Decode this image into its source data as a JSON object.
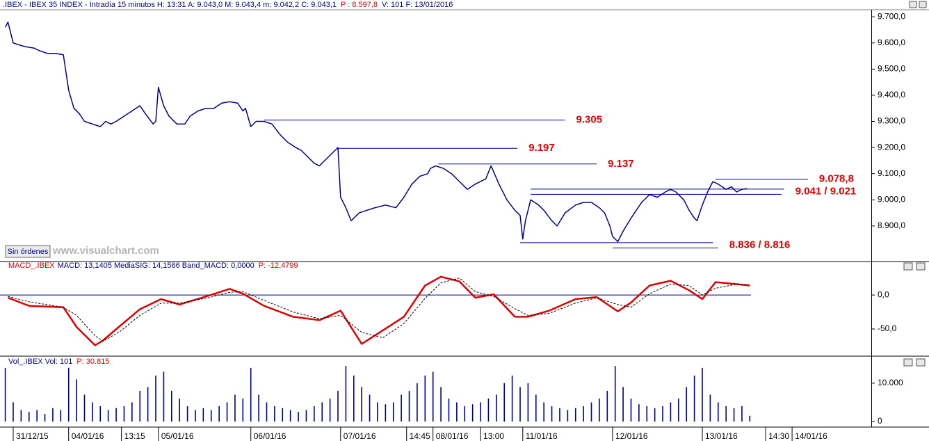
{
  "chart_data": [
    {
      "type": "line",
      "title": ".IBEX - IBEX 35 INDEX - Intradía 15 minutos  H: 13:31  A: 9.043,0  M: 9.043,4  m: 9.042,2  C: 9.043,1",
      "title_p": "P : 8.597,8",
      "title_tail": "V: 101  F: 13/01/2016",
      "button": "Sin órdenes",
      "watermark": "www.visualchart.com",
      "xlim": [
        0,
        330
      ],
      "ylim": [
        8764,
        9727
      ],
      "yticks": [
        {
          "value": 8900,
          "label": "8.900,0"
        },
        {
          "value": 9000,
          "label": "9.000,0"
        },
        {
          "value": 9100,
          "label": "9.100,0"
        },
        {
          "value": 9200,
          "label": "9.200,0"
        },
        {
          "value": 9300,
          "label": "9.300,0"
        },
        {
          "value": 9400,
          "label": "9.400,0"
        },
        {
          "value": 9500,
          "label": "9.500,0"
        },
        {
          "value": 9600,
          "label": "9.600,0"
        },
        {
          "value": 9700,
          "label": "9.700,0"
        }
      ],
      "x": [
        2,
        3,
        5,
        8,
        10,
        13,
        15,
        18,
        21,
        24,
        26,
        28,
        30,
        32,
        35,
        38,
        40,
        42,
        44,
        47,
        50,
        53,
        55,
        58,
        59,
        60,
        62,
        64,
        67,
        70,
        72,
        75,
        78,
        81,
        84,
        87,
        90,
        92,
        93,
        95,
        97,
        100,
        103,
        106,
        109,
        112,
        114,
        117,
        119,
        121,
        123,
        125,
        128,
        129,
        131,
        133,
        136,
        139,
        142,
        146,
        150,
        153,
        156,
        159,
        162,
        163,
        165,
        168,
        171,
        174,
        177,
        180,
        184,
        186,
        189,
        192,
        195,
        197,
        198,
        199,
        201,
        204,
        206,
        209,
        211,
        214,
        218,
        221,
        224,
        227,
        229,
        231,
        232,
        234,
        236,
        239,
        243,
        246,
        249,
        252,
        254,
        256,
        259,
        261,
        263,
        264,
        266,
        268,
        270,
        272,
        275,
        277,
        279,
        281,
        283
      ],
      "series": [
        {
          "name": "IBEX",
          "color": "#00008b",
          "values": [
            9660,
            9680,
            9600,
            9590,
            9585,
            9580,
            9570,
            9560,
            9560,
            9555,
            9420,
            9350,
            9330,
            9300,
            9290,
            9280,
            9300,
            9290,
            9300,
            9320,
            9340,
            9360,
            9330,
            9290,
            9300,
            9430,
            9360,
            9320,
            9290,
            9290,
            9320,
            9340,
            9350,
            9350,
            9370,
            9375,
            9370,
            9340,
            9350,
            9280,
            9300,
            9300,
            9290,
            9250,
            9220,
            9200,
            9190,
            9160,
            9140,
            9130,
            9150,
            9170,
            9200,
            9010,
            8970,
            8920,
            8950,
            8960,
            8970,
            8980,
            8970,
            9010,
            9060,
            9090,
            9100,
            9120,
            9130,
            9120,
            9100,
            9070,
            9040,
            9060,
            9080,
            9130,
            9060,
            9000,
            8960,
            8940,
            8850,
            8920,
            9000,
            8980,
            8960,
            8920,
            8900,
            8950,
            8980,
            8990,
            8990,
            8970,
            8950,
            8900,
            8860,
            8840,
            8880,
            8930,
            8990,
            9020,
            9010,
            9030,
            9040,
            9030,
            9000,
            8960,
            8930,
            8920,
            8980,
            9030,
            9070,
            9060,
            9040,
            9050,
            9030,
            9040,
            9043.1
          ]
        }
      ],
      "level_color": "#00008b",
      "levels": [
        {
          "label": "9.305",
          "lines": [
            {
              "value": 9305,
              "x": [
                100,
                214
              ]
            }
          ]
        },
        {
          "label": "9.197",
          "lines": [
            {
              "value": 9197,
              "x": [
                128,
                196
              ]
            }
          ]
        },
        {
          "label": "9.137",
          "lines": [
            {
              "value": 9137,
              "x": [
                166,
                226
              ]
            }
          ]
        },
        {
          "label": "9.078,8",
          "lines": [
            {
              "value": 9078.8,
              "x": [
                271,
                306
              ]
            }
          ]
        },
        {
          "label": "9.041 / 9.021",
          "lines": [
            {
              "value": 9041,
              "x": [
                201,
                297
              ]
            },
            {
              "value": 9021,
              "x": [
                201,
                296
              ]
            }
          ]
        },
        {
          "label": "8.836 / 8.816",
          "lines": [
            {
              "value": 8836,
              "x": [
                197,
                270
              ]
            },
            {
              "value": 8816,
              "x": [
                232,
                272
              ]
            }
          ]
        }
      ]
    },
    {
      "type": "line",
      "title": "MACD_.IBEX",
      "title_mid": "MACD: 13,1405  MediaSIG: 14,1566  Band_MACD: 0,0000",
      "title_p": "P: -12,4799",
      "xlim": [
        0,
        330
      ],
      "ylim": [
        -90,
        37
      ],
      "yticks": [
        {
          "value": -50,
          "label": "-50,0"
        },
        {
          "value": 0,
          "label": "0,0"
        }
      ],
      "band": 0,
      "band_color": "#00008b",
      "x": [
        3,
        11,
        24,
        29,
        36,
        39,
        45,
        53,
        61,
        68,
        79,
        87,
        92,
        100,
        111,
        121,
        129,
        137,
        145,
        153,
        161,
        167,
        174,
        180,
        187,
        195,
        200,
        208,
        218,
        226,
        234,
        239,
        246,
        254,
        261,
        266,
        271,
        279,
        284
      ],
      "series": [
        {
          "name": "MACD",
          "color": "#e00000",
          "dash": false,
          "values": [
            -4,
            -16,
            -18,
            -47,
            -74,
            -67,
            -47,
            -21,
            -6,
            -14,
            -1,
            9,
            2,
            -16,
            -32,
            -37,
            -23,
            -72,
            -52,
            -32,
            14,
            27,
            20,
            -4,
            1,
            -32,
            -32,
            -23,
            -6,
            -3,
            -24,
            -11,
            14,
            21,
            7,
            -6,
            19,
            16,
            14
          ]
        },
        {
          "name": "MediaSIG",
          "color": "#000000",
          "dash": true,
          "values": [
            -2,
            -10,
            -18,
            -30,
            -60,
            -68,
            -55,
            -30,
            -12,
            -12,
            -4,
            4,
            5,
            -8,
            -25,
            -35,
            -30,
            -55,
            -63,
            -42,
            -5,
            18,
            25,
            5,
            -2,
            -20,
            -30,
            -27,
            -12,
            -4,
            -14,
            -18,
            2,
            16,
            14,
            0,
            10,
            16,
            15
          ]
        }
      ]
    },
    {
      "type": "bar",
      "title": "Vol_.IBEX  Vol: 101",
      "title_p": "P: 30.815",
      "color": "#00008b",
      "xlim": [
        0,
        330
      ],
      "ylim": [
        0,
        14700
      ],
      "yticks": [
        0,
        {
          "value": 10000,
          "label": "10.000"
        }
      ],
      "xticks": [
        {
          "value": 5,
          "label": "31/12/15"
        },
        {
          "value": 26,
          "label": "04/01/16"
        },
        {
          "value": 46,
          "label": "13:15"
        },
        {
          "value": 60,
          "label": "05/01/16"
        },
        {
          "value": 95,
          "label": "06/01/16"
        },
        {
          "value": 129,
          "label": "07/01/16"
        },
        {
          "value": 154,
          "label": "14:45"
        },
        {
          "value": 164,
          "label": "08/01/16"
        },
        {
          "value": 182,
          "label": "13:00"
        },
        {
          "value": 198,
          "label": "11/01/16"
        },
        {
          "value": 232,
          "label": "12/01/16"
        },
        {
          "value": 266,
          "label": "13/01/16"
        },
        {
          "value": 290,
          "label": "14:30"
        },
        {
          "value": 300,
          "label": "14/01/16"
        }
      ],
      "x": [
        2,
        5,
        8,
        11,
        14,
        17,
        20,
        23,
        26,
        29,
        32,
        35,
        38,
        41,
        44,
        47,
        50,
        53,
        56,
        59,
        62,
        65,
        68,
        71,
        74,
        77,
        80,
        83,
        86,
        89,
        92,
        95,
        98,
        101,
        104,
        107,
        110,
        113,
        116,
        119,
        122,
        125,
        128,
        131,
        134,
        137,
        140,
        143,
        146,
        149,
        152,
        155,
        158,
        161,
        164,
        167,
        170,
        173,
        176,
        179,
        182,
        185,
        188,
        191,
        194,
        197,
        200,
        203,
        206,
        209,
        212,
        215,
        218,
        221,
        224,
        227,
        230,
        233,
        236,
        239,
        242,
        245,
        248,
        251,
        254,
        257,
        260,
        263,
        266,
        269,
        272,
        275,
        278,
        281,
        284
      ],
      "values": [
        14000,
        5000,
        3000,
        2500,
        3000,
        2000,
        3500,
        3000,
        14000,
        11000,
        7000,
        5000,
        4000,
        3000,
        3500,
        4000,
        5000,
        8000,
        9000,
        12000,
        13000,
        8000,
        6000,
        4000,
        3000,
        3500,
        3000,
        4000,
        5000,
        7000,
        6000,
        14000,
        7000,
        5000,
        4000,
        3500,
        3000,
        2500,
        3000,
        4000,
        5000,
        6000,
        8000,
        14500,
        12000,
        9000,
        7000,
        5000,
        4500,
        5000,
        7000,
        8000,
        10000,
        12000,
        13000,
        9000,
        6000,
        5000,
        4000,
        4500,
        5000,
        6000,
        7000,
        10000,
        12000,
        9000,
        10000,
        7000,
        5000,
        4000,
        3500,
        3000,
        3500,
        4000,
        5000,
        6000,
        8000,
        14500,
        9000,
        6000,
        4500,
        4000,
        3500,
        4000,
        5000,
        6000,
        9000,
        12000,
        14000,
        7000,
        5000,
        4000,
        3500,
        4000,
        1500
      ]
    }
  ]
}
